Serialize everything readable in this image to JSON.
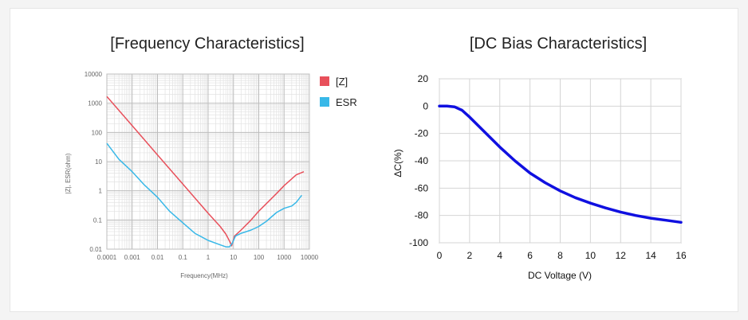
{
  "chart_data": [
    {
      "type": "line",
      "title": "[Frequency Characteristics]",
      "xlabel": "Frequency(MHz)",
      "ylabel": "|Z|, ESR(ohm)",
      "xscale": "log",
      "yscale": "log",
      "xlim": [
        0.0001,
        10000
      ],
      "ylim": [
        0.01,
        10000
      ],
      "x_ticks": [
        "0.0001",
        "0.001",
        "0.01",
        "0.1",
        "1",
        "10",
        "100",
        "1000",
        "10000"
      ],
      "y_ticks": [
        "0.01",
        "0.1",
        "1",
        "10",
        "100",
        "1000",
        "10000"
      ],
      "grid": true,
      "legend_position": "right",
      "colors": {
        "z": "#e8505b",
        "esr": "#38b8e8"
      },
      "series": [
        {
          "name": "[Z]",
          "x": [
            0.0001,
            0.001,
            0.01,
            0.1,
            1,
            3,
            5,
            7,
            8.5,
            11,
            20,
            50,
            100,
            500,
            1000,
            3000,
            6000
          ],
          "y": [
            1700,
            170,
            17,
            1.7,
            0.17,
            0.06,
            0.033,
            0.019,
            0.013,
            0.028,
            0.045,
            0.1,
            0.2,
            0.8,
            1.5,
            3.5,
            4.5
          ]
        },
        {
          "name": "ESR",
          "x": [
            0.0001,
            0.0003,
            0.001,
            0.003,
            0.01,
            0.03,
            0.1,
            0.3,
            1,
            3,
            5,
            7,
            9,
            12,
            20,
            50,
            100,
            200,
            500,
            1000,
            2000,
            3000,
            5000
          ],
          "y": [
            42,
            12,
            4.5,
            1.6,
            0.6,
            0.2,
            0.08,
            0.035,
            0.02,
            0.014,
            0.012,
            0.012,
            0.016,
            0.028,
            0.035,
            0.045,
            0.06,
            0.09,
            0.18,
            0.25,
            0.3,
            0.4,
            0.7
          ]
        }
      ]
    },
    {
      "type": "line",
      "title": "[DC Bias Characteristics]",
      "xlabel": "DC Voltage (V)",
      "ylabel": "ΔC(%)",
      "xlim": [
        0,
        16
      ],
      "ylim": [
        -100,
        20
      ],
      "x_ticks": [
        "0",
        "2",
        "4",
        "6",
        "8",
        "10",
        "12",
        "14",
        "16"
      ],
      "y_ticks": [
        "20",
        "0",
        "-20",
        "-40",
        "-60",
        "-80",
        "-100"
      ],
      "grid": true,
      "colors": {
        "line": "#1010e0"
      },
      "series": [
        {
          "name": "ΔC",
          "x": [
            0,
            0.5,
            1,
            1.5,
            2,
            3,
            4,
            5,
            6,
            7,
            8,
            9,
            10,
            11,
            12,
            13,
            14,
            15,
            16
          ],
          "y": [
            0,
            0,
            -0.5,
            -3,
            -8,
            -19,
            -30,
            -40,
            -49,
            -56,
            -62,
            -67,
            -71,
            -74.5,
            -77.5,
            -80,
            -82,
            -83.5,
            -85
          ]
        }
      ]
    }
  ]
}
